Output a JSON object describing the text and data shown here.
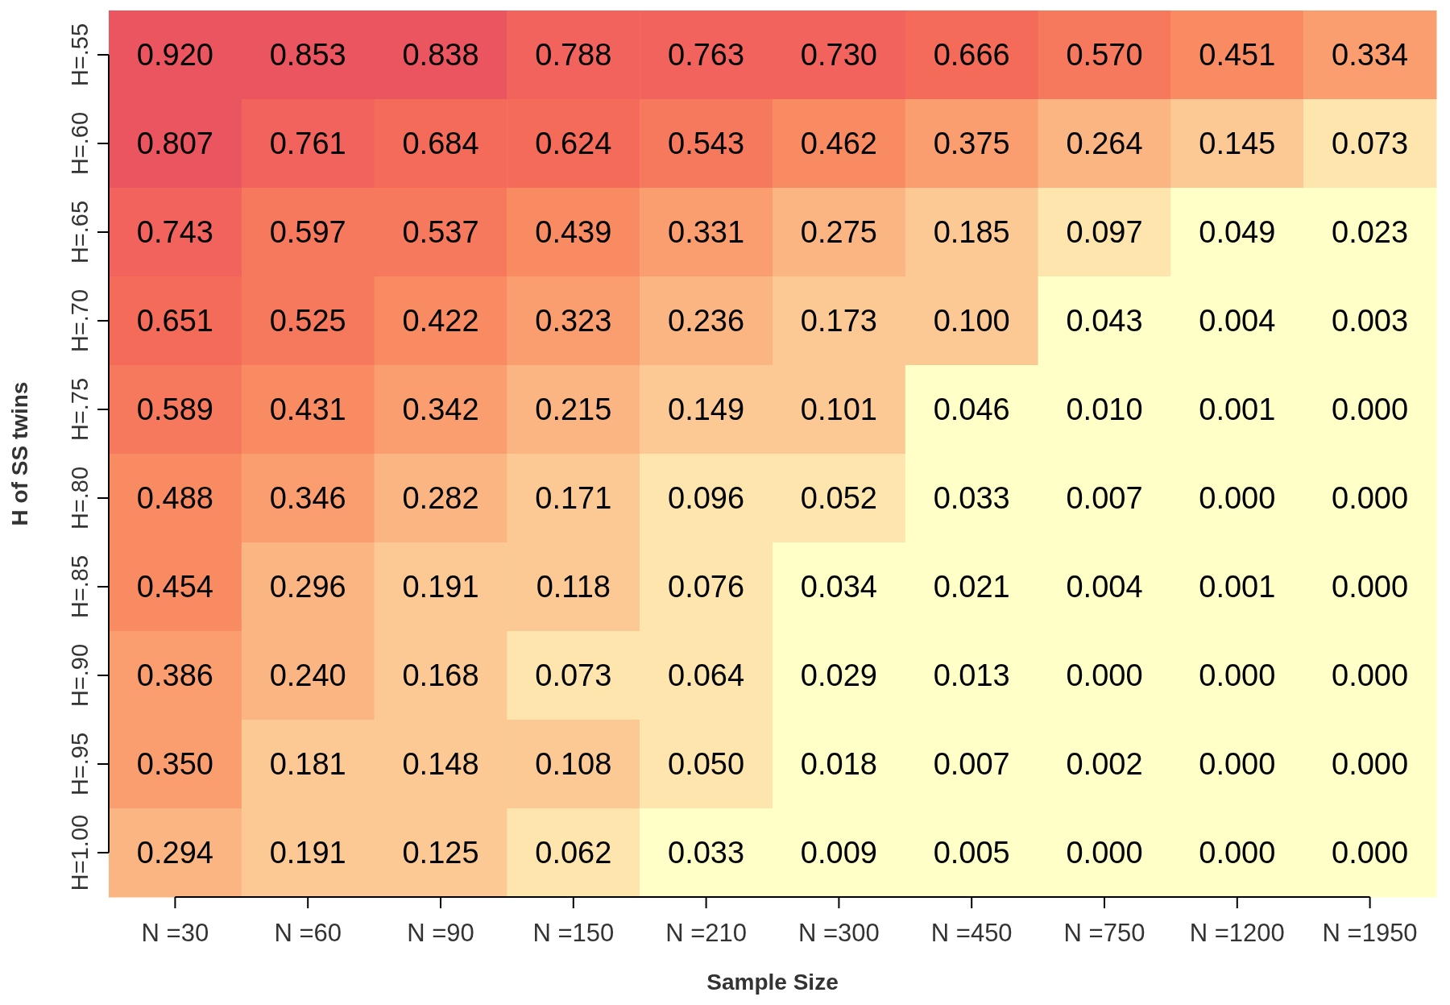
{
  "chart_data": {
    "type": "heatmap",
    "xlabel": "Sample Size",
    "ylabel": "H of SS twins",
    "categories": [
      "N =30",
      "N =60",
      "N =90",
      "N =150",
      "N =210",
      "N =300",
      "N =450",
      "N =750",
      "N =1200",
      "N =1950"
    ],
    "y_categories": [
      "H=.55",
      "H=.60",
      "H=.65",
      "H=.70",
      "H=.75",
      "H=.80",
      "H=.85",
      "H=.90",
      "H=.95",
      "H=1.00"
    ],
    "cell_labels": [
      [
        "0.920",
        "0.853",
        "0.838",
        "0.788",
        "0.763",
        "0.730",
        "0.666",
        "0.570",
        "0.451",
        "0.334"
      ],
      [
        "0.807",
        "0.761",
        "0.684",
        "0.624",
        "0.543",
        "0.462",
        "0.375",
        "0.264",
        "0.145",
        "0.073"
      ],
      [
        "0.743",
        "0.597",
        "0.537",
        "0.439",
        "0.331",
        "0.275",
        "0.185",
        "0.097",
        "0.049",
        "0.023"
      ],
      [
        "0.651",
        "0.525",
        "0.422",
        "0.323",
        "0.236",
        "0.173",
        "0.100",
        "0.043",
        "0.004",
        "0.003"
      ],
      [
        "0.589",
        "0.431",
        "0.342",
        "0.215",
        "0.149",
        "0.101",
        "0.046",
        "0.010",
        "0.001",
        "0.000"
      ],
      [
        "0.488",
        "0.346",
        "0.282",
        "0.171",
        "0.096",
        "0.052",
        "0.033",
        "0.007",
        "0.000",
        "0.000"
      ],
      [
        "0.454",
        "0.296",
        "0.191",
        "0.118",
        "0.076",
        "0.034",
        "0.021",
        "0.004",
        "0.001",
        "0.000"
      ],
      [
        "0.386",
        "0.240",
        "0.168",
        "0.073",
        "0.064",
        "0.029",
        "0.013",
        "0.000",
        "0.000",
        "0.000"
      ],
      [
        "0.350",
        "0.181",
        "0.148",
        "0.108",
        "0.050",
        "0.018",
        "0.007",
        "0.002",
        "0.000",
        "0.000"
      ],
      [
        "0.294",
        "0.191",
        "0.125",
        "0.062",
        "0.033",
        "0.009",
        "0.005",
        "0.000",
        "0.000",
        "0.000"
      ]
    ],
    "cells": [
      [
        0.92,
        0.853,
        0.838,
        0.788,
        0.763,
        0.73,
        0.666,
        0.57,
        0.451,
        0.334
      ],
      [
        0.807,
        0.761,
        0.684,
        0.624,
        0.543,
        0.462,
        0.375,
        0.264,
        0.145,
        0.073
      ],
      [
        0.743,
        0.597,
        0.537,
        0.439,
        0.331,
        0.275,
        0.185,
        0.097,
        0.049,
        0.023
      ],
      [
        0.651,
        0.525,
        0.422,
        0.323,
        0.236,
        0.173,
        0.1,
        0.043,
        0.004,
        0.003
      ],
      [
        0.589,
        0.431,
        0.342,
        0.215,
        0.149,
        0.101,
        0.046,
        0.01,
        0.001,
        0.0
      ],
      [
        0.488,
        0.346,
        0.282,
        0.171,
        0.096,
        0.052,
        0.033,
        0.007,
        0.0,
        0.0
      ],
      [
        0.454,
        0.296,
        0.191,
        0.118,
        0.076,
        0.034,
        0.021,
        0.004,
        0.001,
        0.0
      ],
      [
        0.386,
        0.24,
        0.168,
        0.073,
        0.064,
        0.029,
        0.013,
        0.0,
        0.0,
        0.0
      ],
      [
        0.35,
        0.181,
        0.148,
        0.108,
        0.05,
        0.018,
        0.007,
        0.002,
        0.0,
        0.0
      ],
      [
        0.294,
        0.191,
        0.125,
        0.062,
        0.033,
        0.009,
        0.005,
        0.0,
        0.0,
        0.0
      ]
    ]
  }
}
